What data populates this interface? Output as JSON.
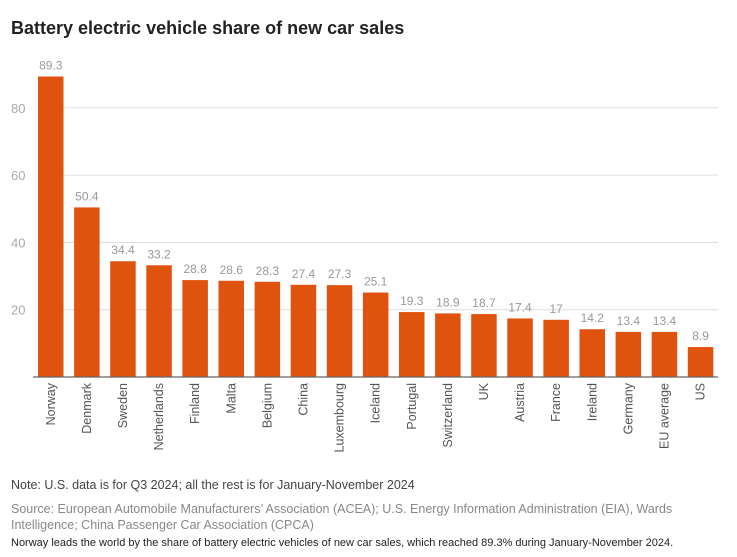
{
  "title": "Battery electric vehicle share of new car sales",
  "note": "Note: U.S. data is for Q3 2024; all the rest is for January-November 2024",
  "source": "Source: European Automobile Manufacturers’ Association (ACEA); U.S. Energy Information Administration (EIA), Wards Intelligence; China Passenger Car Association (CPCA)",
  "caption": "Norway leads the world by the share of battery electric vehicles of new car sales, which reached 89.3% during January-November 2024.",
  "colors": {
    "bar": "#e0530f",
    "grid": "#dddddd",
    "tick": "#aaaaaa",
    "label": "#999999"
  },
  "chart_data": {
    "type": "bar",
    "title": "Battery electric vehicle share of new car sales",
    "xlabel": "",
    "ylabel": "",
    "ylim": [
      0,
      100
    ],
    "yticks": [
      20,
      40,
      60,
      80
    ],
    "grid": true,
    "categories": [
      "Norway",
      "Denmark",
      "Sweden",
      "Netherlands",
      "Finland",
      "Malta",
      "Belgium",
      "China",
      "Luxembourg",
      "Iceland",
      "Portugal",
      "Switzerland",
      "UK",
      "Austria",
      "France",
      "Ireland",
      "Germany",
      "EU average",
      "US"
    ],
    "values": [
      89.3,
      50.4,
      34.4,
      33.2,
      28.8,
      28.6,
      28.3,
      27.4,
      27.3,
      25.1,
      19.3,
      18.9,
      18.7,
      17.4,
      17,
      14.2,
      13.4,
      13.4,
      8.9
    ],
    "value_labels": [
      "89.3",
      "50.4",
      "34.4",
      "33.2",
      "28.8",
      "28.6",
      "28.3",
      "27.4",
      "27.3",
      "25.1",
      "19.3",
      "18.9",
      "18.7",
      "17.4",
      "17",
      "14.2",
      "13.4",
      "13.4",
      "8.9"
    ]
  }
}
